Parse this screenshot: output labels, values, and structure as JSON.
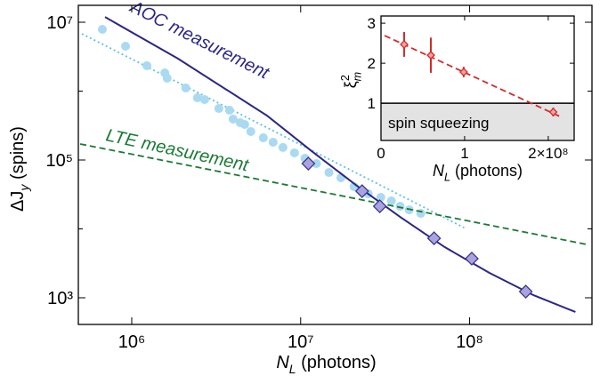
{
  "chart_data": [
    {
      "type": "scatter",
      "xscale": "log",
      "yscale": "log",
      "xlim": [
        483000,
        530000000
      ],
      "ylim": [
        410,
        17600000
      ],
      "xticks": [
        {
          "value": 1000000,
          "label": "10⁶"
        },
        {
          "value": 10000000,
          "label": "10⁷"
        },
        {
          "value": 100000000,
          "label": "10⁸"
        }
      ],
      "yticks": [
        {
          "value": 1000,
          "label": "10³"
        },
        {
          "value": 100000,
          "label": "10⁵"
        },
        {
          "value": 10000000,
          "label": "10⁷"
        }
      ],
      "yminorticks": [
        10000,
        1000000
      ],
      "xlabel": {
        "symbol": "N",
        "subscript": "L",
        "text": " (photons)"
      },
      "ylabel": {
        "symbol": "ΔJ",
        "subscript": "y",
        "text": " (spins)"
      },
      "series": [
        {
          "style": "dotted",
          "color": "#5bc0e8",
          "x": [
            507000,
            92900000
          ],
          "values": [
            6800000,
            10400
          ]
        },
        {
          "style": "markers",
          "marker": "circle",
          "color": "#a9daf2",
          "x": [
            670000,
            919000,
            1230000,
            1570000,
            1620000,
            2090000,
            2450000,
            2700000,
            3280000,
            3790000,
            3980000,
            4390000,
            4660000,
            5070000,
            6010000,
            6870000,
            7850000,
            9190000,
            10600000,
            12400000,
            14700000,
            17300000,
            20700000,
            25100000,
            29800000,
            34400000,
            38800000,
            43900000,
            51400000
          ],
          "values": [
            7890000,
            4490000,
            2340000,
            1840000,
            1540000,
            1110000,
            800000,
            754000,
            560000,
            528000,
            393000,
            348000,
            328000,
            259000,
            210000,
            181000,
            152000,
            127000,
            106000,
            88700,
            65900,
            55200,
            41000,
            32400,
            28700,
            25500,
            21300,
            18900,
            16800
          ]
        },
        {
          "name": "LTE measurement",
          "style": "dashed",
          "color": "#1b7a34",
          "x": [
            495000,
            495000000
          ],
          "values": [
            171000,
            5940
          ]
        },
        {
          "name": "AOC measurement",
          "style": "solid",
          "color": "#2b2787",
          "x": [
            695000,
            1880000,
            6310000,
            11600000,
            21200000,
            38800000,
            71300000,
            131000000,
            239000000,
            423000000
          ],
          "values": [
            11900000,
            2960000,
            442000,
            135000,
            43500,
            14900,
            5430,
            2300,
            1090,
            622
          ]
        },
        {
          "style": "markers",
          "marker": "diamond",
          "color": "#aaa4dc",
          "x": [
            11100000,
            23100000,
            29400000,
            61600000,
            103000000,
            215000000
          ],
          "values": [
            88700,
            35300,
            21300,
            7300,
            3700,
            1230
          ]
        }
      ]
    },
    {
      "type": "scatter",
      "xlim": [
        0,
        231000000
      ],
      "ylim": [
        0.07,
        3.18
      ],
      "xticks": [
        0,
        {
          "value": 100000000,
          "label": "1"
        },
        {
          "value": 200000000,
          "label": "2×10⁸"
        }
      ],
      "yticks": [
        1,
        2,
        3
      ],
      "xlabel": {
        "symbol": "N",
        "subscript": "L",
        "text": " (photons)"
      },
      "ylabel": {
        "symbol": "ξ",
        "superscript": "2",
        "subscript": "m"
      },
      "region": {
        "ymax": 1,
        "label": "spin squeezing",
        "color": "#e3e3e3"
      },
      "series": [
        {
          "style": "dashed",
          "color": "#d42a2a",
          "x": [
            4300000,
            217000000
          ],
          "values": [
            2.69,
            0.64
          ]
        },
        {
          "style": "markers",
          "marker": "diamond",
          "color": "#d42a2a",
          "x": [
            27700000,
            59600000,
            98900000,
            206000000
          ],
          "values": [
            2.47,
            2.2,
            1.78,
            0.78
          ],
          "errors": [
            0.31,
            0.44,
            0.13,
            0.11
          ]
        }
      ]
    }
  ]
}
